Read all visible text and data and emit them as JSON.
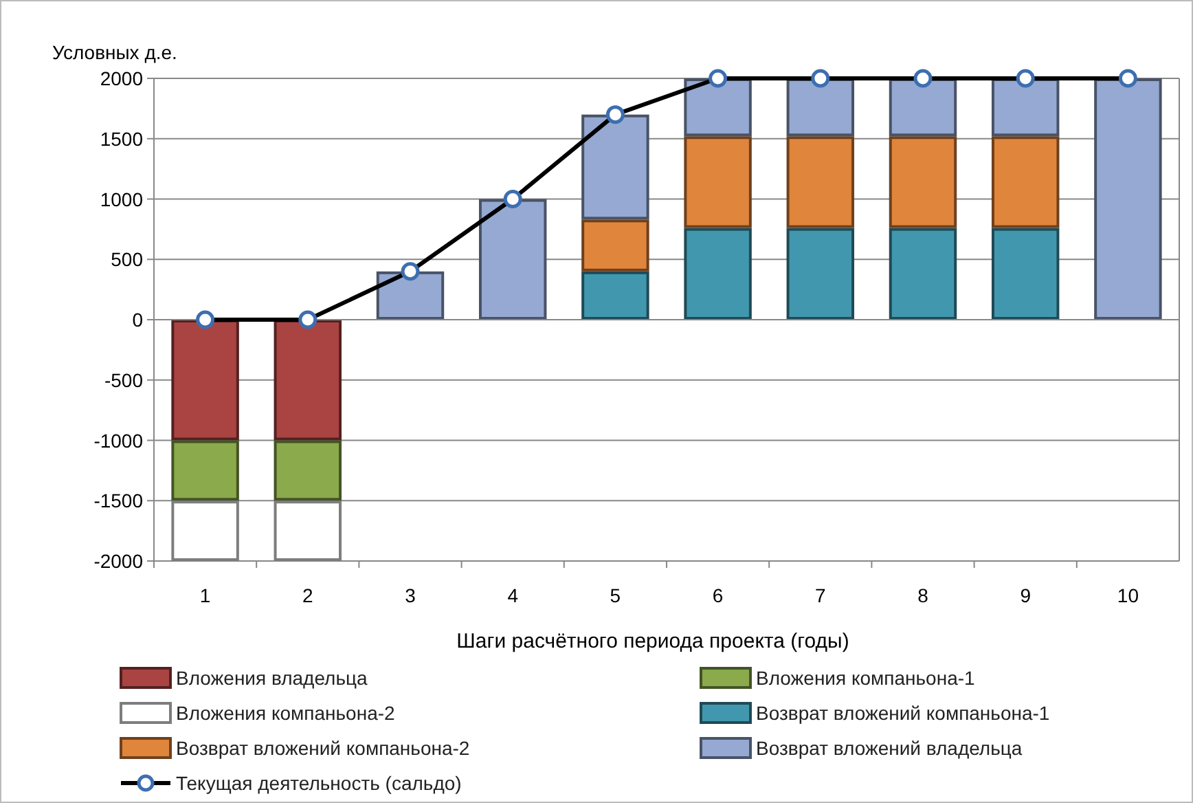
{
  "chart_data": {
    "type": "bar",
    "stacked": true,
    "ylabel": "Условных д.е.",
    "xlabel": "Шаги расчётного периода проекта (годы)",
    "categories": [
      "1",
      "2",
      "3",
      "4",
      "5",
      "6",
      "7",
      "8",
      "9",
      "10"
    ],
    "ylim": [
      -2000,
      2000
    ],
    "yticks": [
      -2000,
      -1500,
      -1000,
      -500,
      0,
      500,
      1000,
      1500,
      2000
    ],
    "grid": "y",
    "legend": "bottom",
    "series": [
      {
        "name": "Вложения владельца",
        "color": "#a94442",
        "values": [
          -1000,
          -1000,
          0,
          0,
          0,
          0,
          0,
          0,
          0,
          0
        ]
      },
      {
        "name": "Вложения компаньона-1",
        "color": "#8aaa4c",
        "values": [
          -500,
          -500,
          0,
          0,
          0,
          0,
          0,
          0,
          0,
          0
        ]
      },
      {
        "name": "Вложения компаньона-2",
        "color": "#ffffff",
        "values": [
          -500,
          -500,
          0,
          0,
          0,
          0,
          0,
          0,
          0,
          0
        ]
      },
      {
        "name": "Возврат вложений компаньона-1",
        "color": "#4198ae",
        "values": [
          0,
          0,
          0,
          0,
          400,
          760,
          760,
          760,
          760,
          0
        ]
      },
      {
        "name": "Возврат вложений компаньона-2",
        "color": "#e0853c",
        "values": [
          0,
          0,
          0,
          0,
          430,
          760,
          760,
          760,
          760,
          0
        ]
      },
      {
        "name": "Возврат вложений владельца",
        "color": "#95a9d2",
        "values": [
          0,
          0,
          400,
          1000,
          870,
          480,
          480,
          480,
          480,
          2000
        ]
      },
      {
        "name": "Текущая деятельность (сальдо)",
        "type": "line",
        "color": "#000000",
        "marker": "circle",
        "values": [
          0,
          0,
          400,
          1000,
          1700,
          2000,
          2000,
          2000,
          2000,
          2000
        ]
      }
    ]
  }
}
